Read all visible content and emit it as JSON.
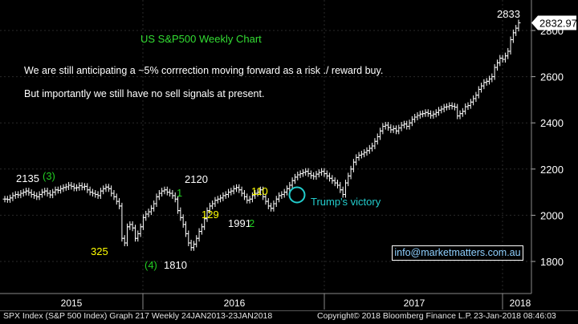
{
  "chart_data": {
    "type": "line",
    "title": "US S&P500 Weekly Chart",
    "notes": [
      "We are still anticipating a ~5% corrrection moving forward as a risk ./ reward buy.",
      "But importantly we still have no sell signals at present."
    ],
    "ylim": [
      1700,
      2880
    ],
    "y_ticks": [
      1800,
      2000,
      2200,
      2400,
      2600,
      2800
    ],
    "y_tick_labels": [
      "1800",
      "2000",
      "2200",
      "2400",
      "2600",
      "2800"
    ],
    "x_labels": [
      {
        "label": "2015",
        "at": 0
      },
      {
        "label": "2016",
        "at": 52
      },
      {
        "label": "2017",
        "at": 104
      },
      {
        "label": "2018",
        "at": 156
      }
    ],
    "x_range": [
      -19,
      166
    ],
    "last_price_label": "2832.97",
    "last_price": 2832.97,
    "series": [
      {
        "values": [
          2070,
          2068,
          2075,
          2085,
          2090,
          2088,
          2095,
          2100,
          2105,
          2098,
          2090,
          2085,
          2080,
          2090,
          2100,
          2105,
          2095,
          2088,
          2100,
          2110,
          2108,
          2115,
          2120,
          2123,
          2130,
          2125,
          2118,
          2120,
          2128,
          2122,
          2125,
          2110,
          2100,
          2095,
          2090,
          2085,
          2105,
          2115,
          2122,
          2115,
          2095,
          2080,
          2060,
          2040,
          1900,
          1880,
          1950,
          1960,
          1945,
          1900,
          1920,
          1950,
          1990,
          2005,
          2015,
          2030,
          2050,
          2080,
          2095,
          2105,
          2110,
          2100,
          2095,
          2085,
          2070,
          2020,
          1990,
          1960,
          1920,
          1880,
          1860,
          1875,
          1900,
          1930,
          1950,
          1985,
          2020,
          2040,
          2050,
          2065,
          2070,
          2075,
          2085,
          2090,
          2100,
          2105,
          2115,
          2120,
          2110,
          2095,
          2080,
          2065,
          2070,
          2085,
          2095,
          2100,
          2110,
          2080,
          2060,
          2040,
          2030,
          2050,
          2070,
          2085,
          2090,
          2100,
          2115,
          2130,
          2150,
          2165,
          2175,
          2180,
          2185,
          2190,
          2180,
          2172,
          2168,
          2178,
          2185,
          2190,
          2180,
          2170,
          2160,
          2150,
          2140,
          2130,
          2110,
          2090,
          2140,
          2170,
          2200,
          2230,
          2250,
          2260,
          2265,
          2272,
          2280,
          2290,
          2300,
          2320,
          2340,
          2365,
          2385,
          2390,
          2380,
          2370,
          2375,
          2365,
          2378,
          2390,
          2395,
          2385,
          2400,
          2415,
          2425,
          2432,
          2438,
          2440,
          2445,
          2440,
          2432,
          2438,
          2445,
          2455,
          2460,
          2468,
          2470,
          2475,
          2472,
          2468,
          2430,
          2440,
          2450,
          2470,
          2475,
          2490,
          2505,
          2520,
          2545,
          2560,
          2575,
          2580,
          2590,
          2600,
          2640,
          2660,
          2680,
          2675,
          2690,
          2710,
          2760,
          2790,
          2810,
          2833
        ]
      }
    ],
    "annotations": [
      {
        "text": "2135",
        "x": 0,
        "y": 2138,
        "color": "#ffffff"
      },
      {
        "text": "(3)",
        "x": 0,
        "y": 2138,
        "color": "#22cc22"
      },
      {
        "text": "325",
        "x": 0,
        "y": 1830,
        "color": "#ffff00"
      },
      {
        "text": "(4)",
        "x": 0,
        "y": 1800,
        "color": "#22cc22"
      },
      {
        "text": "1810",
        "x": 0,
        "y": 1800,
        "color": "#ffffff"
      },
      {
        "text": "2120",
        "x": 0,
        "y": 2122,
        "color": "#ffffff"
      },
      {
        "text": "1",
        "x": 0,
        "y": 2087,
        "color": "#22cc22"
      },
      {
        "text": "129",
        "x": 0,
        "y": 1990,
        "color": "#ffff00"
      },
      {
        "text": "1991",
        "x": 0,
        "y": 1992,
        "color": "#ffffff"
      },
      {
        "text": "2",
        "x": 0,
        "y": 1992,
        "color": "#22cc22"
      },
      {
        "text": "110",
        "x": 0,
        "y": 2083,
        "color": "#ffff00"
      },
      {
        "text": "Trump's victory",
        "x": 0,
        "y": 2070,
        "color": "#22cccc"
      },
      {
        "text": "2833",
        "x": 0,
        "y": 2880,
        "color": "#ffffff"
      }
    ]
  },
  "colors": {
    "background": "#000000",
    "bars": "#ffffff",
    "grid": "#2a2a2a",
    "title": "#33dd33",
    "axis_text": "#ffffff",
    "circle": "#22cccc",
    "link": "#8fd0ff"
  },
  "watermark": "info@marketmatters.com.au",
  "footer": {
    "left": "SPX Index (S&P 500 Index) Graph 217  Weekly 24JAN2013-23JAN2018",
    "center": "Copyright© 2018 Bloomberg Finance L.P.",
    "right": "23-Jan-2018 08:46:03"
  }
}
